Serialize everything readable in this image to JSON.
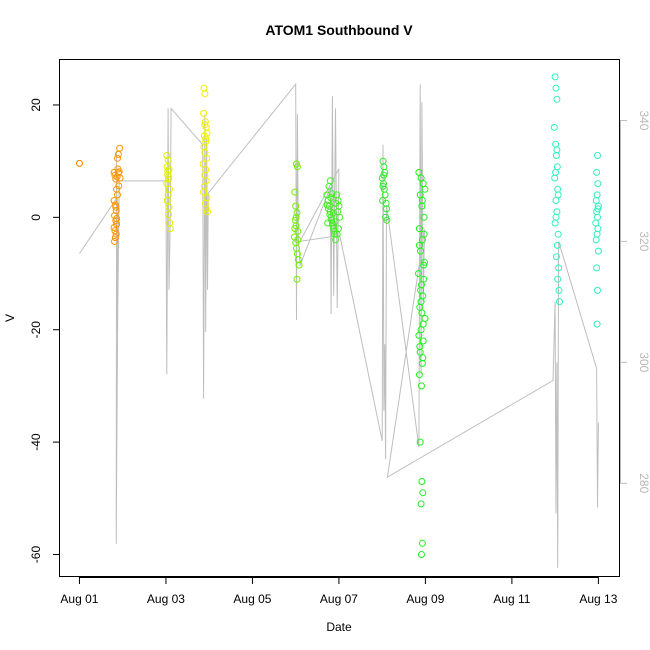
{
  "chart_data": {
    "type": "scatter",
    "title": "ATOM1 Southbound V",
    "xlabel": "Date",
    "ylabel": "V",
    "x_ticks": [
      "Aug 01",
      "Aug 03",
      "Aug 05",
      "Aug 07",
      "Aug 09",
      "Aug 11",
      "Aug 13"
    ],
    "x_tick_days": [
      1,
      3,
      5,
      7,
      9,
      11,
      13
    ],
    "xlim_days": [
      0.55,
      13.5
    ],
    "ylim": [
      -64,
      28
    ],
    "y_ticks": [
      -60,
      -40,
      -20,
      0,
      20
    ],
    "y2_ticks": [
      280,
      300,
      320,
      340
    ],
    "y2lim": [
      264.5,
      350
    ],
    "grid": false,
    "secondary_color": "#bebebe",
    "scatter_series": [
      {
        "day": 1.0,
        "color": "#FF8000",
        "points": [
          [
            1.0,
            9.6
          ]
        ]
      },
      {
        "day": 1.85,
        "color": "#FF9500",
        "points": [
          [
            1.8,
            8.0
          ],
          [
            1.82,
            7.5
          ],
          [
            1.84,
            6.8
          ],
          [
            1.86,
            5.0
          ],
          [
            1.88,
            4.0
          ],
          [
            1.8,
            3.0
          ],
          [
            1.83,
            2.2
          ],
          [
            1.85,
            1.2
          ],
          [
            1.81,
            0.3
          ],
          [
            1.84,
            -0.6
          ],
          [
            1.86,
            -1.2
          ],
          [
            1.8,
            -1.8
          ],
          [
            1.82,
            -2.4
          ],
          [
            1.85,
            -3.0
          ],
          [
            1.83,
            -3.6
          ],
          [
            1.81,
            -4.3
          ],
          [
            1.87,
            7.2
          ],
          [
            1.9,
            7.9
          ],
          [
            1.92,
            8.1
          ],
          [
            1.88,
            10.5
          ],
          [
            1.9,
            11.2
          ],
          [
            1.93,
            12.3
          ],
          [
            1.91,
            5.6
          ],
          [
            1.94,
            7.0
          ],
          [
            1.89,
            8.6
          ],
          [
            1.86,
            -0.2
          ],
          [
            1.84,
            1.8
          ]
        ]
      },
      {
        "day": 3.1,
        "color": "#E0F000",
        "points": [
          [
            3.02,
            11.0
          ],
          [
            3.05,
            10.2
          ],
          [
            3.03,
            9.0
          ],
          [
            3.07,
            8.5
          ],
          [
            3.04,
            7.6
          ],
          [
            3.06,
            6.8
          ],
          [
            3.02,
            6.0
          ],
          [
            3.08,
            5.0
          ],
          [
            3.05,
            4.0
          ],
          [
            3.03,
            3.0
          ],
          [
            3.07,
            1.8
          ],
          [
            3.06,
            0.5
          ],
          [
            3.09,
            -1.0
          ],
          [
            3.1,
            -2.0
          ],
          [
            3.04,
            8.2
          ],
          [
            3.06,
            7.2
          ]
        ]
      },
      {
        "day": 3.9,
        "color": "#F0F000",
        "points": [
          [
            3.88,
            23.0
          ],
          [
            3.9,
            22.0
          ],
          [
            3.87,
            18.5
          ],
          [
            3.91,
            17.0
          ],
          [
            3.93,
            16.0
          ],
          [
            3.95,
            15.0
          ],
          [
            3.89,
            14.5
          ],
          [
            3.92,
            13.5
          ],
          [
            3.88,
            12.5
          ],
          [
            3.9,
            11.5
          ],
          [
            3.94,
            10.5
          ],
          [
            3.86,
            9.5
          ],
          [
            3.92,
            8.5
          ],
          [
            3.9,
            7.5
          ],
          [
            3.93,
            6.5
          ],
          [
            3.89,
            5.5
          ],
          [
            3.87,
            4.5
          ],
          [
            3.95,
            3.5
          ],
          [
            3.91,
            2.5
          ],
          [
            3.93,
            1.5
          ],
          [
            3.96,
            1.0
          ],
          [
            3.9,
            16.5
          ],
          [
            3.92,
            14.0
          ]
        ]
      },
      {
        "day": 6.05,
        "color": "#70F000",
        "points": [
          [
            6.02,
            9.5
          ],
          [
            6.04,
            9.0
          ],
          [
            5.98,
            4.5
          ],
          [
            6.0,
            2.0
          ],
          [
            6.03,
            0.8
          ],
          [
            5.99,
            -0.5
          ],
          [
            6.01,
            -1.5
          ],
          [
            6.05,
            -2.5
          ],
          [
            5.97,
            -3.5
          ],
          [
            6.0,
            -4.5
          ],
          [
            6.02,
            -5.5
          ],
          [
            6.04,
            -6.5
          ],
          [
            6.06,
            -7.5
          ],
          [
            6.08,
            -8.5
          ],
          [
            6.03,
            -11.0
          ],
          [
            6.01,
            0.0
          ],
          [
            5.98,
            -2.0
          ],
          [
            6.05,
            -4.0
          ]
        ]
      },
      {
        "day": 6.9,
        "color": "#40F020",
        "points": [
          [
            6.72,
            4.0
          ],
          [
            6.75,
            3.0
          ],
          [
            6.78,
            2.0
          ],
          [
            6.8,
            1.0
          ],
          [
            6.82,
            0.0
          ],
          [
            6.85,
            -1.0
          ],
          [
            6.88,
            -2.0
          ],
          [
            6.9,
            -3.0
          ],
          [
            6.92,
            -4.0
          ],
          [
            6.95,
            4.0
          ],
          [
            6.98,
            3.0
          ],
          [
            7.0,
            2.0
          ],
          [
            6.76,
            1.5
          ],
          [
            6.79,
            0.5
          ],
          [
            6.83,
            -0.5
          ],
          [
            6.86,
            -1.5
          ],
          [
            6.89,
            -2.5
          ],
          [
            6.93,
            2.5
          ],
          [
            6.97,
            1.0
          ],
          [
            7.02,
            0.0
          ],
          [
            6.74,
            -1.0
          ],
          [
            6.81,
            3.5
          ],
          [
            6.87,
            0.8
          ],
          [
            6.91,
            -0.8
          ],
          [
            6.96,
            -3.0
          ],
          [
            6.73,
            2.2
          ],
          [
            6.84,
            4.2
          ],
          [
            6.99,
            -2.0
          ],
          [
            6.8,
            6.5
          ],
          [
            6.77,
            5.5
          ]
        ]
      },
      {
        "day": 8.1,
        "color": "#30E830",
        "points": [
          [
            8.02,
            10.0
          ],
          [
            8.04,
            9.0
          ],
          [
            8.06,
            8.0
          ],
          [
            8.0,
            7.0
          ],
          [
            8.03,
            6.0
          ],
          [
            8.05,
            5.0
          ],
          [
            8.07,
            4.0
          ],
          [
            8.01,
            3.0
          ],
          [
            8.09,
            2.5
          ],
          [
            8.1,
            1.5
          ],
          [
            8.08,
            0.0
          ],
          [
            8.11,
            -0.5
          ],
          [
            8.04,
            7.5
          ],
          [
            8.02,
            5.5
          ]
        ]
      },
      {
        "day": 8.95,
        "color": "#20F020",
        "points": [
          [
            8.85,
            8.0
          ],
          [
            8.9,
            7.0
          ],
          [
            8.95,
            6.0
          ],
          [
            8.88,
            4.0
          ],
          [
            8.92,
            2.0
          ],
          [
            8.97,
            0.0
          ],
          [
            8.86,
            -2.0
          ],
          [
            8.93,
            -4.0
          ],
          [
            8.89,
            -6.0
          ],
          [
            8.98,
            -8.0
          ],
          [
            8.84,
            -10.0
          ],
          [
            8.91,
            -12.0
          ],
          [
            8.94,
            -14.0
          ],
          [
            8.87,
            -16.0
          ],
          [
            8.99,
            -18.0
          ],
          [
            8.9,
            -20.0
          ],
          [
            8.95,
            -22.0
          ],
          [
            8.88,
            -24.0
          ],
          [
            8.93,
            -26.0
          ],
          [
            8.86,
            -28.0
          ],
          [
            8.91,
            -30.0
          ],
          [
            8.96,
            -8.5
          ],
          [
            8.89,
            -13.0
          ],
          [
            8.92,
            -17.0
          ],
          [
            8.85,
            -21.0
          ],
          [
            8.94,
            -25.0
          ],
          [
            8.97,
            -3.0
          ],
          [
            8.88,
            -40.0
          ],
          [
            8.92,
            -47.0
          ],
          [
            8.94,
            -49.0
          ],
          [
            8.9,
            -51.0
          ],
          [
            8.93,
            -58.0
          ],
          [
            8.91,
            -60.0
          ],
          [
            8.99,
            5.0
          ],
          [
            8.86,
            -5.0
          ],
          [
            8.96,
            -11.0
          ],
          [
            8.9,
            -15.0
          ],
          [
            8.95,
            -19.0
          ],
          [
            8.87,
            -23.0
          ],
          [
            8.93,
            3.0
          ]
        ]
      },
      {
        "day": 12.05,
        "color": "#30F0C0",
        "points": [
          [
            12.0,
            25.0
          ],
          [
            12.02,
            23.0
          ],
          [
            12.04,
            21.0
          ],
          [
            11.98,
            16.0
          ],
          [
            12.01,
            13.0
          ],
          [
            12.03,
            11.0
          ],
          [
            12.05,
            9.0
          ],
          [
            11.99,
            7.0
          ],
          [
            12.06,
            5.0
          ],
          [
            12.02,
            3.0
          ],
          [
            12.04,
            1.0
          ],
          [
            12.0,
            -1.0
          ],
          [
            12.07,
            -3.0
          ],
          [
            12.05,
            -5.0
          ],
          [
            12.03,
            -7.0
          ],
          [
            12.08,
            -9.0
          ],
          [
            12.06,
            -11.0
          ],
          [
            12.09,
            -13.0
          ],
          [
            12.1,
            -15.0
          ],
          [
            12.04,
            12.0
          ],
          [
            12.01,
            8.0
          ],
          [
            12.07,
            4.0
          ],
          [
            12.02,
            0.0
          ]
        ]
      },
      {
        "day": 12.95,
        "color": "#30F0C0",
        "points": [
          [
            12.98,
            11.0
          ],
          [
            12.96,
            8.0
          ],
          [
            12.99,
            6.0
          ],
          [
            12.97,
            4.0
          ],
          [
            12.95,
            3.0
          ],
          [
            13.0,
            2.0
          ],
          [
            12.96,
            1.0
          ],
          [
            12.98,
            0.0
          ],
          [
            12.94,
            -1.0
          ],
          [
            12.99,
            -2.0
          ],
          [
            12.97,
            -3.0
          ],
          [
            12.95,
            -4.0
          ],
          [
            13.0,
            -6.0
          ],
          [
            12.96,
            -9.0
          ],
          [
            12.98,
            -13.0
          ],
          [
            12.97,
            -19.0
          ],
          [
            12.99,
            1.5
          ]
        ]
      }
    ],
    "line_series": {
      "color": "#bebebe",
      "axis": "right",
      "points": [
        [
          1.0,
          318
        ],
        [
          1.85,
          327
        ],
        [
          1.9,
          325
        ],
        [
          1.85,
          270
        ],
        [
          1.86,
          335
        ],
        [
          1.88,
          305
        ],
        [
          1.92,
          330
        ],
        [
          3.0,
          330
        ],
        [
          3.02,
          298
        ],
        [
          3.05,
          342
        ],
        [
          3.07,
          312
        ],
        [
          3.1,
          324
        ],
        [
          3.12,
          342
        ],
        [
          3.85,
          336
        ],
        [
          3.87,
          294
        ],
        [
          3.9,
          341
        ],
        [
          3.92,
          305
        ],
        [
          3.94,
          337
        ],
        [
          3.96,
          312
        ],
        [
          3.98,
          328
        ],
        [
          6.0,
          346
        ],
        [
          6.02,
          307
        ],
        [
          6.04,
          341
        ],
        [
          6.06,
          321
        ],
        [
          6.1,
          316
        ],
        [
          6.8,
          329
        ],
        [
          6.82,
          308
        ],
        [
          6.85,
          344
        ],
        [
          6.88,
          311
        ],
        [
          6.92,
          342
        ],
        [
          6.96,
          309
        ],
        [
          7.0,
          332
        ],
        [
          6.1,
          320
        ],
        [
          7.02,
          321
        ],
        [
          8.0,
          287
        ],
        [
          8.02,
          336
        ],
        [
          8.04,
          292
        ],
        [
          8.06,
          303
        ],
        [
          8.08,
          284
        ],
        [
          8.1,
          326
        ],
        [
          8.85,
          286
        ],
        [
          8.88,
          346
        ],
        [
          8.9,
          298
        ],
        [
          8.92,
          343
        ],
        [
          8.95,
          310
        ],
        [
          8.98,
          322
        ],
        [
          8.12,
          281
        ],
        [
          11.95,
          297
        ],
        [
          12.0,
          310
        ],
        [
          12.02,
          275
        ],
        [
          12.04,
          300
        ],
        [
          12.06,
          266
        ],
        [
          12.08,
          320
        ],
        [
          12.96,
          299
        ],
        [
          12.98,
          276
        ],
        [
          13.0,
          290
        ]
      ]
    }
  }
}
